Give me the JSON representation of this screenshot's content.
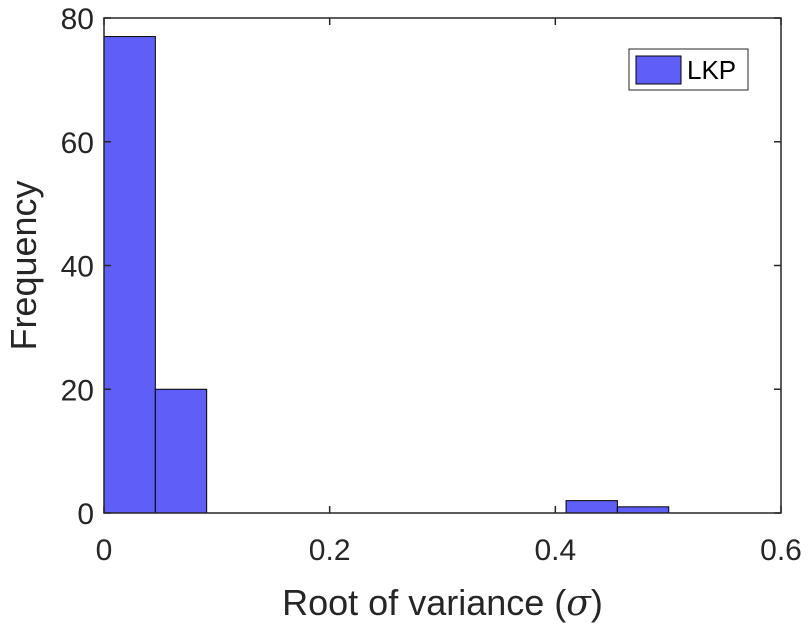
{
  "chart_data": {
    "type": "bar",
    "xlabel_parts": {
      "before": "Root of variance (",
      "symbol": "σ",
      "after": ")"
    },
    "ylabel": "Frequency",
    "xlim": [
      0,
      0.6
    ],
    "ylim": [
      0,
      80
    ],
    "xticks": [
      0,
      0.2,
      0.4,
      0.6
    ],
    "yticks": [
      0,
      20,
      40,
      60,
      80
    ],
    "grid": false,
    "legend": {
      "position": "top-right",
      "entries": [
        {
          "label": "LKP",
          "color": "#5f5ff7"
        }
      ]
    },
    "series": [
      {
        "name": "LKP",
        "color": "#5f5ff7",
        "bins": [
          {
            "x0": 0.0,
            "x1": 0.0455,
            "count": 77
          },
          {
            "x0": 0.0455,
            "x1": 0.091,
            "count": 20
          },
          {
            "x0": 0.091,
            "x1": 0.1365,
            "count": 0
          },
          {
            "x0": 0.1365,
            "x1": 0.182,
            "count": 0
          },
          {
            "x0": 0.182,
            "x1": 0.2275,
            "count": 0
          },
          {
            "x0": 0.2275,
            "x1": 0.273,
            "count": 0
          },
          {
            "x0": 0.273,
            "x1": 0.3185,
            "count": 0
          },
          {
            "x0": 0.3185,
            "x1": 0.364,
            "count": 0
          },
          {
            "x0": 0.364,
            "x1": 0.4095,
            "count": 0
          },
          {
            "x0": 0.4095,
            "x1": 0.455,
            "count": 2
          },
          {
            "x0": 0.455,
            "x1": 0.5005,
            "count": 1
          }
        ]
      }
    ]
  }
}
